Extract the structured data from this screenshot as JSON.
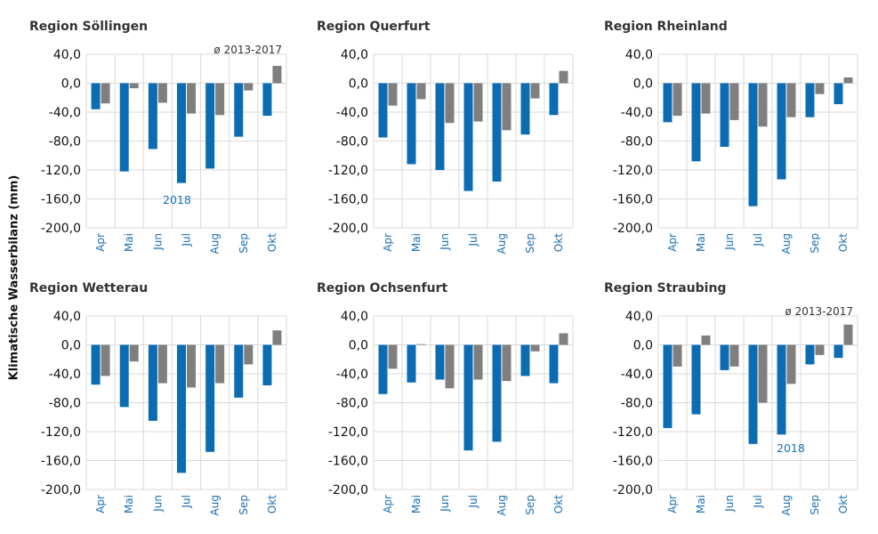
{
  "ylabel": "Klimatische Wasserbilanz (mm)",
  "chart_data": [
    {
      "type": "bar",
      "title": "Region Söllingen",
      "categories": [
        "Apr",
        "Mai",
        "Jun",
        "Jul",
        "Aug",
        "Sep",
        "Okt"
      ],
      "series": [
        {
          "values": [
            -36,
            -122,
            -91,
            -138,
            -118,
            -74,
            -45
          ],
          "color": "#0b6cb4"
        },
        {
          "values": [
            -28,
            -7,
            -27,
            -42,
            -44,
            -10,
            24
          ],
          "color": "#7f7f7f"
        }
      ],
      "ylim": [
        -200,
        40
      ],
      "yticks": [
        "40,0",
        "0,0",
        "-40,0",
        "-80,0",
        "-120,0",
        "-160,0",
        "-200,0"
      ],
      "annotations": [
        "ø 2013-2017",
        "2018"
      ]
    },
    {
      "type": "bar",
      "title": "Region Querfurt",
      "categories": [
        "Apr",
        "Mai",
        "Jun",
        "Jul",
        "Aug",
        "Sep",
        "Okt"
      ],
      "series": [
        {
          "values": [
            -75,
            -112,
            -120,
            -149,
            -136,
            -71,
            -44
          ],
          "color": "#0b6cb4"
        },
        {
          "values": [
            -31,
            -22,
            -55,
            -53,
            -65,
            -21,
            17
          ],
          "color": "#7f7f7f"
        }
      ],
      "ylim": [
        -200,
        40
      ],
      "yticks": [
        "40,0",
        "0,0",
        "-40,0",
        "-80,0",
        "-120,0",
        "-160,0",
        "-200,0"
      ],
      "annotations": []
    },
    {
      "type": "bar",
      "title": "Region Rheinland",
      "categories": [
        "Apr",
        "Mai",
        "Jun",
        "Jul",
        "Aug",
        "Sep",
        "Okt"
      ],
      "series": [
        {
          "values": [
            -54,
            -108,
            -88,
            -170,
            -133,
            -47,
            -29
          ],
          "color": "#0b6cb4"
        },
        {
          "values": [
            -45,
            -42,
            -51,
            -60,
            -47,
            -15,
            8
          ],
          "color": "#7f7f7f"
        }
      ],
      "ylim": [
        -200,
        40
      ],
      "yticks": [
        "40,0",
        "0,0",
        "-40,0",
        "-80,0",
        "-120,0",
        "-160,0",
        "-200,0"
      ],
      "annotations": []
    },
    {
      "type": "bar",
      "title": "Region Wetterau",
      "categories": [
        "Apr",
        "Mai",
        "Jun",
        "Jul",
        "Aug",
        "Sep",
        "Okt"
      ],
      "series": [
        {
          "values": [
            -55,
            -86,
            -105,
            -177,
            -148,
            -73,
            -56
          ],
          "color": "#0b6cb4"
        },
        {
          "values": [
            -43,
            -23,
            -53,
            -59,
            -53,
            -27,
            20
          ],
          "color": "#7f7f7f"
        }
      ],
      "ylim": [
        -200,
        40
      ],
      "yticks": [
        "40,0",
        "0,0",
        "-40,0",
        "-80,0",
        "-120,0",
        "-160,0",
        "-200,0"
      ],
      "annotations": []
    },
    {
      "type": "bar",
      "title": "Region Ochsenfurt",
      "categories": [
        "Apr",
        "Mai",
        "Jun",
        "Jul",
        "Aug",
        "Sep",
        "Okt"
      ],
      "series": [
        {
          "values": [
            -68,
            -52,
            -48,
            -146,
            -134,
            -43,
            -53
          ],
          "color": "#0b6cb4"
        },
        {
          "values": [
            -33,
            1,
            -60,
            -48,
            -50,
            -9,
            16
          ],
          "color": "#7f7f7f"
        }
      ],
      "ylim": [
        -200,
        40
      ],
      "yticks": [
        "40,0",
        "0,0",
        "-40,0",
        "-80,0",
        "-120,0",
        "-160,0",
        "-200,0"
      ],
      "annotations": []
    },
    {
      "type": "bar",
      "title": "Region Straubing",
      "categories": [
        "Apr",
        "Mai",
        "Jun",
        "Jul",
        "Aug",
        "Sep",
        "Okt"
      ],
      "series": [
        {
          "values": [
            -115,
            -96,
            -35,
            -137,
            -124,
            -27,
            -18
          ],
          "color": "#0b6cb4"
        },
        {
          "values": [
            -30,
            13,
            -30,
            -80,
            -54,
            -14,
            28
          ],
          "color": "#7f7f7f"
        }
      ],
      "ylim": [
        -200,
        40
      ],
      "yticks": [
        "40,0",
        "0,0",
        "-40,0",
        "-80,0",
        "-120,0",
        "-160,0",
        "-200,0"
      ],
      "annotations": [
        "ø 2013-2017",
        "2018"
      ]
    }
  ]
}
